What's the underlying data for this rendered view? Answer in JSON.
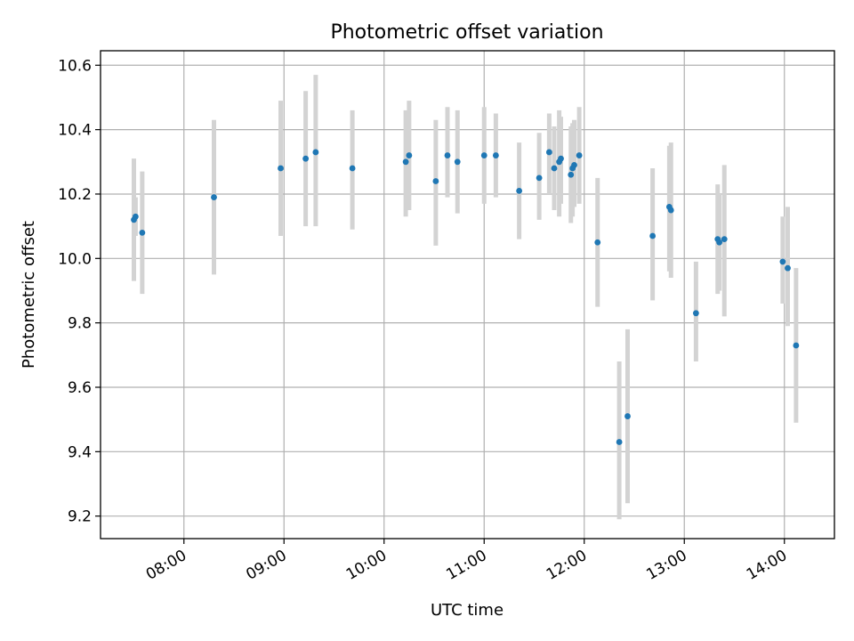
{
  "chart_data": {
    "type": "scatter",
    "title": "Photometric offset variation",
    "xlabel": "UTC time",
    "ylabel": "Photometric offset",
    "xlim": [
      "07:10",
      "14:30"
    ],
    "ylim": [
      9.13,
      10.645
    ],
    "grid": true,
    "x_ticks": [
      "08:00",
      "09:00",
      "10:00",
      "11:00",
      "12:00",
      "13:00",
      "14:00"
    ],
    "y_ticks": [
      "9.2",
      "9.4",
      "9.6",
      "9.8",
      "10.0",
      "10.2",
      "10.4",
      "10.6"
    ],
    "errorbar_color": "#d3d3d3",
    "marker_color": "#1f77b4",
    "series": [
      {
        "name": "offset",
        "points": [
          {
            "x": "07:30",
            "y": 10.12,
            "ylo": 9.93,
            "yhi": 10.31
          },
          {
            "x": "07:31",
            "y": 10.13,
            "ylo": 10.07,
            "yhi": 10.19
          },
          {
            "x": "07:35",
            "y": 10.08,
            "ylo": 9.89,
            "yhi": 10.27
          },
          {
            "x": "08:18",
            "y": 10.19,
            "ylo": 9.95,
            "yhi": 10.43
          },
          {
            "x": "08:58",
            "y": 10.28,
            "ylo": 10.07,
            "yhi": 10.49
          },
          {
            "x": "09:13",
            "y": 10.31,
            "ylo": 10.1,
            "yhi": 10.52
          },
          {
            "x": "09:19",
            "y": 10.33,
            "ylo": 10.1,
            "yhi": 10.57
          },
          {
            "x": "09:41",
            "y": 10.28,
            "ylo": 10.09,
            "yhi": 10.46
          },
          {
            "x": "10:13",
            "y": 10.3,
            "ylo": 10.13,
            "yhi": 10.46
          },
          {
            "x": "10:15",
            "y": 10.32,
            "ylo": 10.15,
            "yhi": 10.49
          },
          {
            "x": "10:31",
            "y": 10.24,
            "ylo": 10.04,
            "yhi": 10.43
          },
          {
            "x": "10:38",
            "y": 10.32,
            "ylo": 10.19,
            "yhi": 10.47
          },
          {
            "x": "10:44",
            "y": 10.3,
            "ylo": 10.14,
            "yhi": 10.46
          },
          {
            "x": "11:00",
            "y": 10.32,
            "ylo": 10.17,
            "yhi": 10.47
          },
          {
            "x": "11:07",
            "y": 10.32,
            "ylo": 10.19,
            "yhi": 10.45
          },
          {
            "x": "11:21",
            "y": 10.21,
            "ylo": 10.06,
            "yhi": 10.36
          },
          {
            "x": "11:33",
            "y": 10.25,
            "ylo": 10.12,
            "yhi": 10.39
          },
          {
            "x": "11:39",
            "y": 10.33,
            "ylo": 10.2,
            "yhi": 10.45
          },
          {
            "x": "11:42",
            "y": 10.28,
            "ylo": 10.15,
            "yhi": 10.41
          },
          {
            "x": "11:45",
            "y": 10.3,
            "ylo": 10.13,
            "yhi": 10.46
          },
          {
            "x": "11:46",
            "y": 10.31,
            "ylo": 10.17,
            "yhi": 10.44
          },
          {
            "x": "11:52",
            "y": 10.26,
            "ylo": 10.11,
            "yhi": 10.41
          },
          {
            "x": "11:53",
            "y": 10.28,
            "ylo": 10.13,
            "yhi": 10.42
          },
          {
            "x": "11:54",
            "y": 10.29,
            "ylo": 10.16,
            "yhi": 10.43
          },
          {
            "x": "11:57",
            "y": 10.32,
            "ylo": 10.17,
            "yhi": 10.47
          },
          {
            "x": "12:08",
            "y": 10.05,
            "ylo": 9.85,
            "yhi": 10.25
          },
          {
            "x": "12:21",
            "y": 9.43,
            "ylo": 9.19,
            "yhi": 9.68
          },
          {
            "x": "12:26",
            "y": 9.51,
            "ylo": 9.24,
            "yhi": 9.78
          },
          {
            "x": "12:41",
            "y": 10.07,
            "ylo": 9.87,
            "yhi": 10.28
          },
          {
            "x": "12:51",
            "y": 10.16,
            "ylo": 9.96,
            "yhi": 10.35
          },
          {
            "x": "12:52",
            "y": 10.15,
            "ylo": 9.94,
            "yhi": 10.36
          },
          {
            "x": "13:07",
            "y": 9.83,
            "ylo": 9.68,
            "yhi": 9.99
          },
          {
            "x": "13:20",
            "y": 10.06,
            "ylo": 9.89,
            "yhi": 10.23
          },
          {
            "x": "13:21",
            "y": 10.05,
            "ylo": 9.9,
            "yhi": 10.2
          },
          {
            "x": "13:24",
            "y": 10.06,
            "ylo": 9.82,
            "yhi": 10.29
          },
          {
            "x": "13:59",
            "y": 9.99,
            "ylo": 9.86,
            "yhi": 10.13
          },
          {
            "x": "14:02",
            "y": 9.97,
            "ylo": 9.79,
            "yhi": 10.16
          },
          {
            "x": "14:07",
            "y": 9.73,
            "ylo": 9.49,
            "yhi": 9.97
          }
        ]
      }
    ]
  }
}
